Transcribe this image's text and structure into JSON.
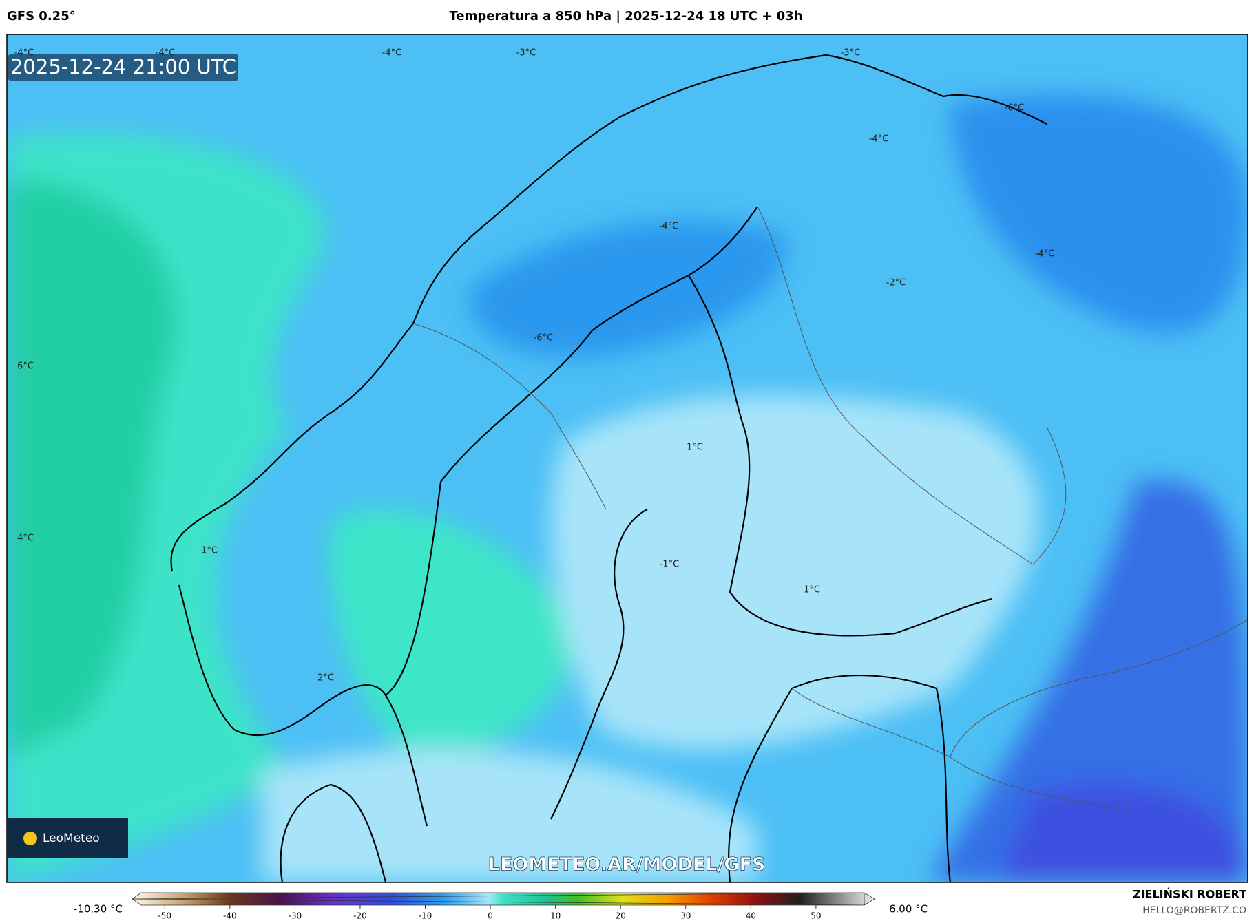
{
  "header": {
    "model": "GFS 0.25°",
    "title": "Temperatura a 850 hPa | 2025-12-24 18 UTC + 03h"
  },
  "map": {
    "timestamp": "2025-12-24 21:00 UTC",
    "contour_labels": [
      "-4°C",
      "-4°C",
      "-4°C",
      "-3°C",
      "-3°C",
      "-6°C",
      "-4°C",
      "-4°C",
      "-4°C",
      "-2°C",
      "-6°C",
      "6°C",
      "1°C",
      "4°C",
      "1°C",
      "-1°C",
      "1°C",
      "2°C"
    ],
    "logo": "LeoMeteo",
    "watermark": "LEOMETEO.AR/MODEL/GFS"
  },
  "colorbar": {
    "min_label": "-10.30 °C",
    "max_label": "6.00 °C",
    "lim": [
      -55,
      59
    ],
    "ticks": [
      -50,
      -40,
      -30,
      -20,
      -10,
      0,
      10,
      20,
      30,
      40,
      50
    ]
  },
  "footer": {
    "author": "ZIELIŃSKI ROBERT",
    "email": "HELLO@ROBERTZ.CO"
  }
}
